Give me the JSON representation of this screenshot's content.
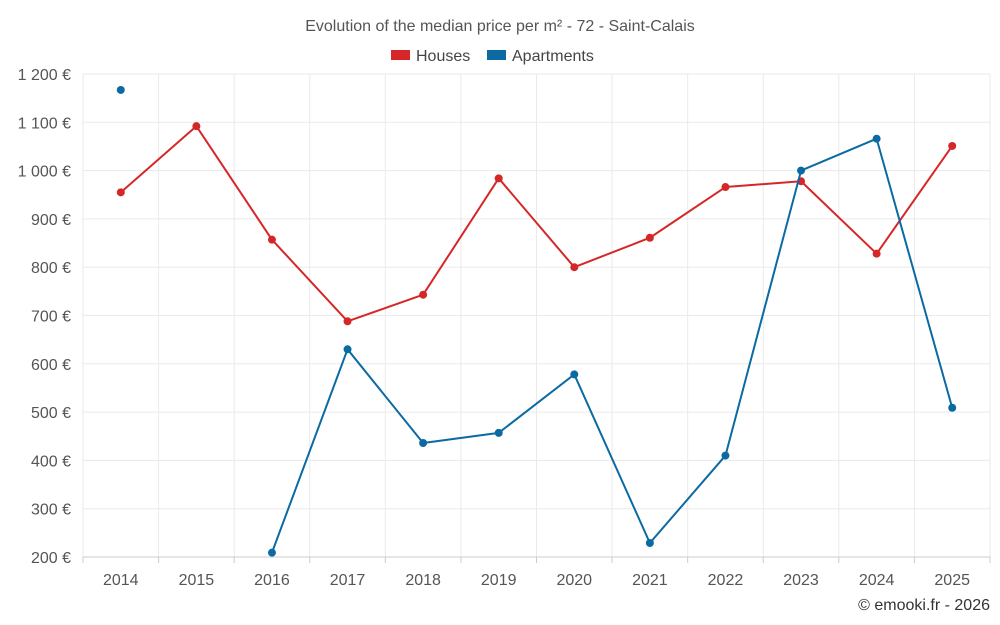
{
  "chart_data": {
    "type": "line",
    "title": "Evolution of the median price per m² - 72 - Saint-Calais",
    "categories": [
      "2014",
      "2015",
      "2016",
      "2017",
      "2018",
      "2019",
      "2020",
      "2021",
      "2022",
      "2023",
      "2024",
      "2025"
    ],
    "y_ticks": [
      "200 €",
      "300 €",
      "400 €",
      "500 €",
      "600 €",
      "700 €",
      "800 €",
      "900 €",
      "1 000 €",
      "1 100 €",
      "1 200 €"
    ],
    "ylim": [
      200,
      1200
    ],
    "xlabel": "",
    "ylabel": "",
    "legend_position": "top-center",
    "grid": true,
    "series": [
      {
        "name": "Houses",
        "color": "#d62728",
        "values": [
          955,
          1092,
          857,
          688,
          743,
          984,
          800,
          861,
          966,
          978,
          828,
          1051
        ]
      },
      {
        "name": "Apartments",
        "color": "#0b6aa2",
        "values": [
          1167,
          null,
          209,
          630,
          436,
          457,
          578,
          229,
          410,
          1000,
          1066,
          509
        ]
      }
    ]
  },
  "credit": "© emooki.fr - 2026"
}
